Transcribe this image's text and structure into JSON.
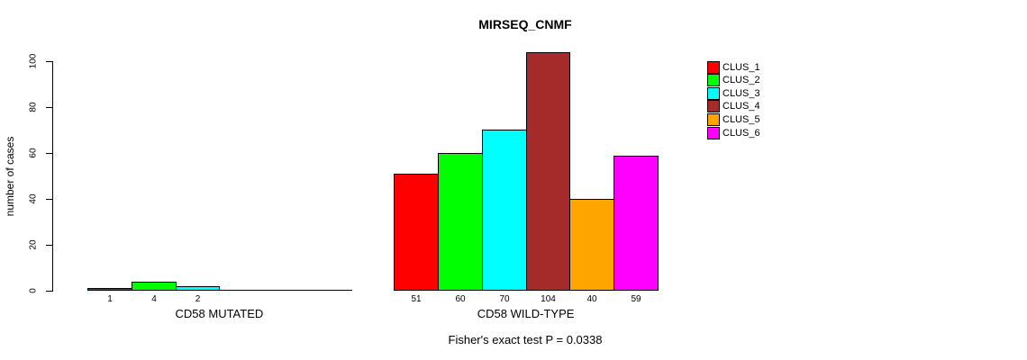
{
  "chart_data": {
    "type": "bar",
    "title": "MIRSEQ_CNMF",
    "ylabel": "number of cases",
    "xlabel": "",
    "ylim": [
      0,
      100
    ],
    "yticks": [
      0,
      20,
      40,
      60,
      80,
      100
    ],
    "grid": false,
    "legend_position": "top-right",
    "categories": [
      "CD58 MUTATED",
      "CD58 WILD-TYPE"
    ],
    "series": [
      {
        "name": "CLUS_1",
        "color": "#FF0000",
        "values": [
          1,
          51
        ]
      },
      {
        "name": "CLUS_2",
        "color": "#00FF00",
        "values": [
          4,
          60
        ]
      },
      {
        "name": "CLUS_3",
        "color": "#00FFFF",
        "values": [
          2,
          70
        ]
      },
      {
        "name": "CLUS_4",
        "color": "#A52A2A",
        "values": [
          0,
          104
        ]
      },
      {
        "name": "CLUS_5",
        "color": "#FFA500",
        "values": [
          0,
          40
        ]
      },
      {
        "name": "CLUS_6",
        "color": "#FF00FF",
        "values": [
          0,
          59
        ]
      }
    ],
    "bar_value_labels": {
      "CD58 MUTATED": [
        "1",
        "4",
        "2",
        "",
        "",
        ""
      ],
      "CD58 WILD-TYPE": [
        "51",
        "60",
        "70",
        "104",
        "40",
        "59"
      ]
    },
    "annotation": "Fisher's exact test P = 0.0338"
  }
}
